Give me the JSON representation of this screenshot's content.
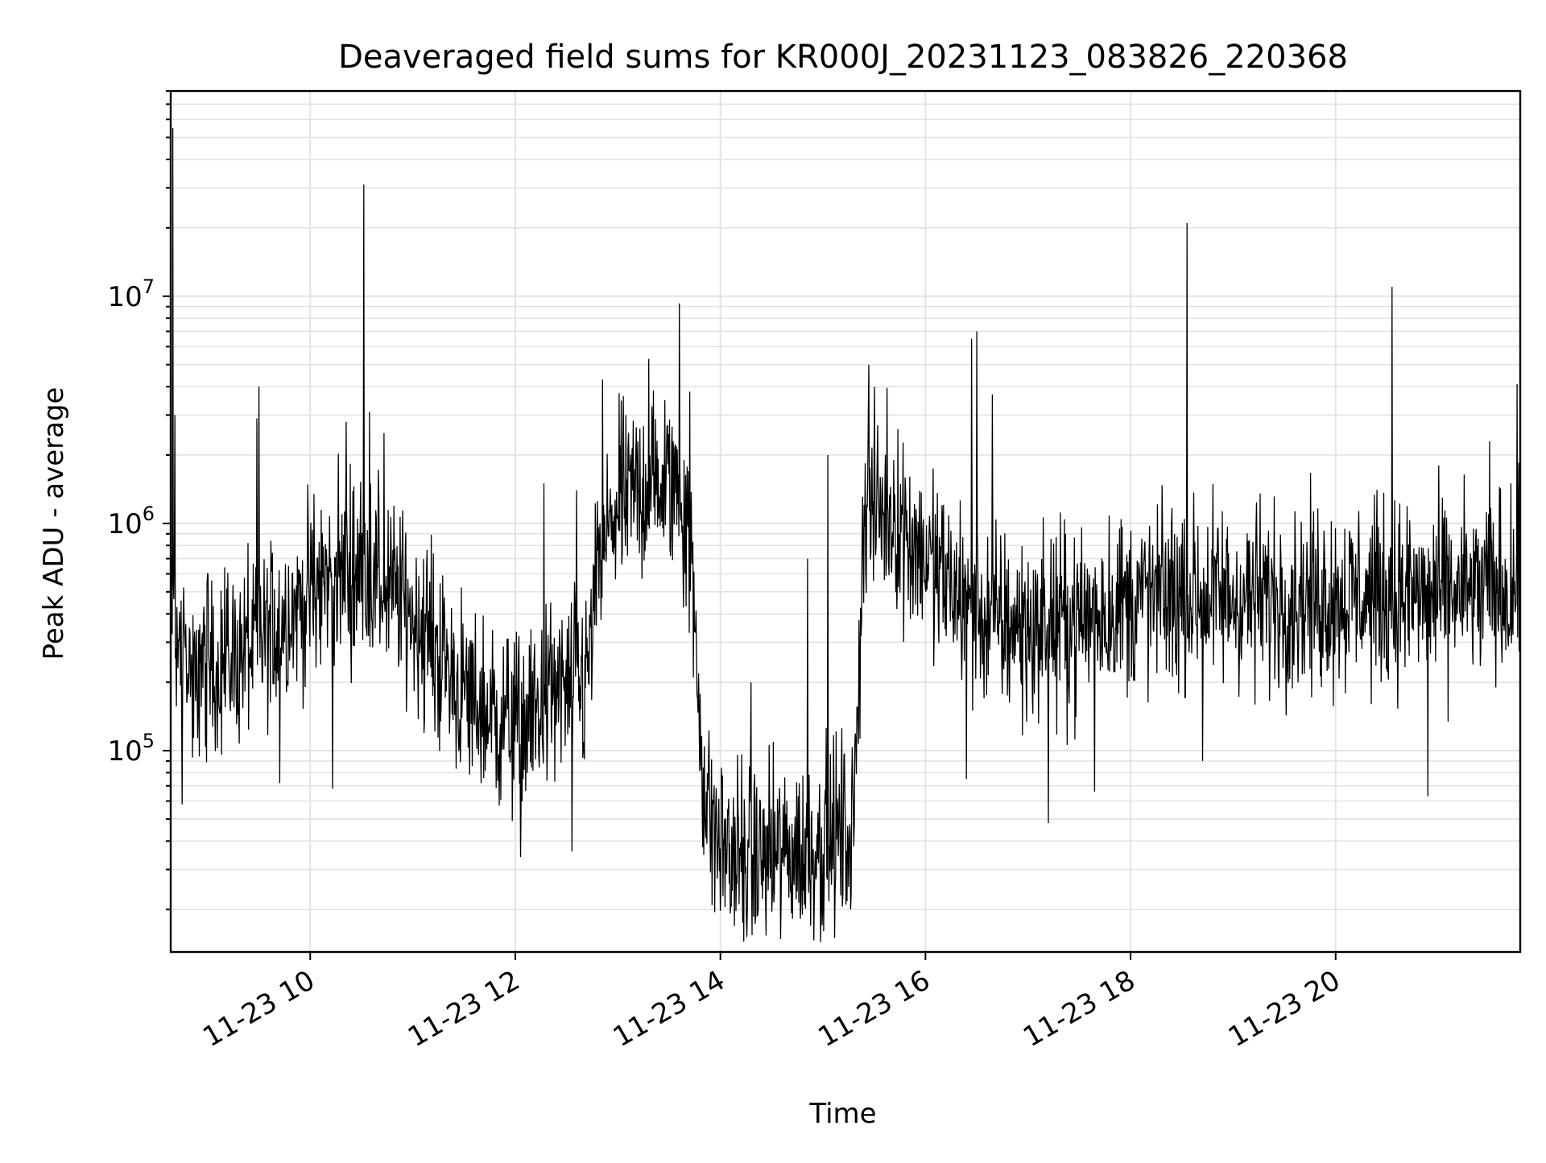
{
  "chart_data": {
    "type": "line",
    "title": "Deaveraged field sums for KR000J_20231123_083826_220368",
    "xlabel": "Time",
    "ylabel": "Peak ADU - average",
    "x_date": "2023-11-23",
    "x_range_hours": [
      8.6395,
      21.8
    ],
    "x_ticks": [
      {
        "hour": 10,
        "label": "11-23 10"
      },
      {
        "hour": 12,
        "label": "11-23 12"
      },
      {
        "hour": 14,
        "label": "11-23 14"
      },
      {
        "hour": 16,
        "label": "11-23 16"
      },
      {
        "hour": 18,
        "label": "11-23 18"
      },
      {
        "hour": 20,
        "label": "11-23 20"
      }
    ],
    "y_scale": "log",
    "ylim": [
      13000,
      80000000
    ],
    "y_ticks": [
      {
        "value": 100000,
        "base": "10",
        "exp": "5"
      },
      {
        "value": 1000000,
        "base": "10",
        "exp": "6"
      },
      {
        "value": 10000000,
        "base": "10",
        "exp": "7"
      }
    ],
    "grid": true,
    "series": [
      {
        "color": "#000000",
        "baseline": [
          [
            8.64,
            300000
          ],
          [
            8.8,
            250000
          ],
          [
            9.0,
            240000
          ],
          [
            9.3,
            260000
          ],
          [
            9.6,
            330000
          ],
          [
            9.9,
            450000
          ],
          [
            10.2,
            580000
          ],
          [
            10.5,
            650000
          ],
          [
            10.8,
            500000
          ],
          [
            11.0,
            400000
          ],
          [
            11.3,
            250000
          ],
          [
            11.5,
            170000
          ],
          [
            11.8,
            140000
          ],
          [
            12.1,
            130000
          ],
          [
            12.4,
            180000
          ],
          [
            12.7,
            200000
          ],
          [
            12.8,
            600000
          ],
          [
            13.0,
            1200000
          ],
          [
            13.3,
            1500000
          ],
          [
            13.6,
            1500000
          ],
          [
            13.7,
            800000
          ],
          [
            13.85,
            60000
          ],
          [
            14.0,
            38000
          ],
          [
            14.3,
            33000
          ],
          [
            14.6,
            35000
          ],
          [
            15.0,
            40000
          ],
          [
            15.3,
            45000
          ],
          [
            15.4,
            1200000
          ],
          [
            15.7,
            1100000
          ],
          [
            16.0,
            700000
          ],
          [
            16.3,
            500000
          ],
          [
            16.6,
            380000
          ],
          [
            17.0,
            340000
          ],
          [
            17.5,
            380000
          ],
          [
            18.0,
            460000
          ],
          [
            18.5,
            480000
          ],
          [
            19.0,
            470000
          ],
          [
            19.5,
            470000
          ],
          [
            20.0,
            480000
          ],
          [
            20.5,
            480000
          ],
          [
            21.0,
            480000
          ],
          [
            21.4,
            500000
          ],
          [
            21.8,
            520000
          ]
        ],
        "spikes": [
          [
            8.66,
            55000000
          ],
          [
            8.68,
            3000000
          ],
          [
            9.5,
            4000000
          ],
          [
            9.48,
            2900000
          ],
          [
            10.52,
            31000000
          ],
          [
            10.58,
            3100000
          ],
          [
            10.35,
            2800000
          ],
          [
            10.72,
            2500000
          ],
          [
            12.28,
            1500000
          ],
          [
            12.6,
            1400000
          ],
          [
            12.85,
            4300000
          ],
          [
            13.3,
            5300000
          ],
          [
            13.6,
            9300000
          ],
          [
            13.7,
            3800000
          ],
          [
            14.3,
            200000
          ],
          [
            14.85,
            700000
          ],
          [
            15.05,
            2000000
          ],
          [
            15.45,
            5000000
          ],
          [
            16.45,
            6500000
          ],
          [
            16.5,
            7000000
          ],
          [
            16.65,
            3700000
          ],
          [
            18.55,
            21000000
          ],
          [
            20.55,
            11000000
          ],
          [
            21.5,
            2300000
          ],
          [
            21.77,
            4100000
          ],
          [
            14.1,
            21000
          ],
          [
            14.22,
            17500
          ],
          [
            14.5,
            19500
          ],
          [
            14.8,
            19000
          ],
          [
            15.27,
            20000
          ],
          [
            12.05,
            34000
          ],
          [
            12.55,
            36000
          ],
          [
            8.75,
            58000
          ],
          [
            9.7,
            72000
          ],
          [
            10.22,
            68000
          ],
          [
            17.2,
            48000
          ],
          [
            16.4,
            75000
          ],
          [
            17.65,
            66000
          ],
          [
            20.9,
            63000
          ],
          [
            18.7,
            90000
          ]
        ]
      }
    ]
  }
}
